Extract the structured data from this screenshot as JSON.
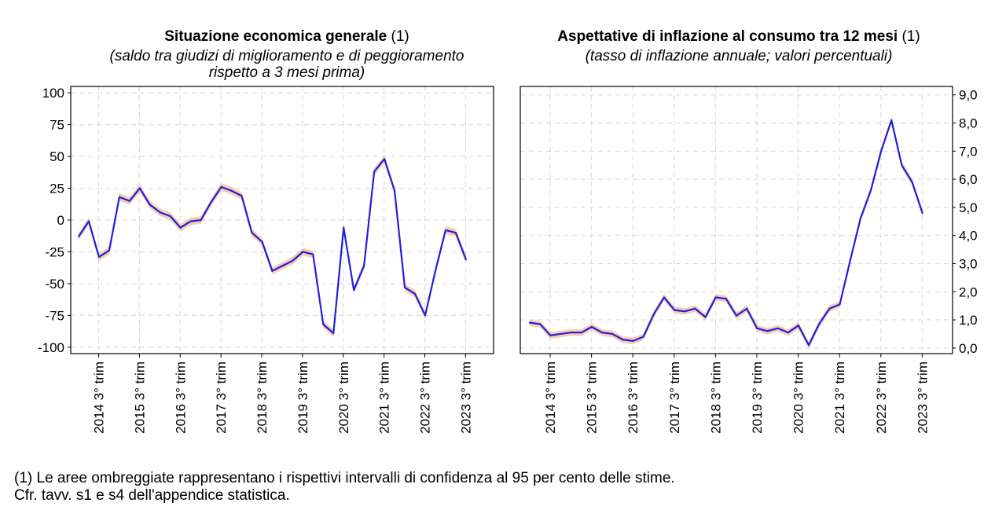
{
  "chart_data": [
    {
      "type": "line",
      "title": "Situazione economica generale",
      "title_note": "(1)",
      "subtitle_line1": "(saldo tra giudizi di miglioramento e di peggioramento",
      "subtitle_line2": "rispetto a 3 mesi prima)",
      "ylim": [
        -105,
        105
      ],
      "y_axis_side": "left",
      "yticks": [
        -100,
        -75,
        -50,
        -25,
        0,
        25,
        50,
        75,
        100
      ],
      "ytick_labels": [
        "-100",
        "-75",
        "-50",
        "-25",
        "0",
        "25",
        "50",
        "75",
        "100"
      ],
      "xticks": [
        "2014 3° trim",
        "2015 3° trim",
        "2016 3° trim",
        "2017 3° trim",
        "2018 3° trim",
        "2019 3° trim",
        "2020 3° trim",
        "2021 3° trim",
        "2022 3° trim",
        "2023 3° trim"
      ],
      "first_period": "2013 4° trim",
      "grid": true,
      "series": [
        {
          "name": "Situazione economica generale",
          "color": "#2020dd",
          "band_color": "#f7c4a4",
          "band_halfwidth": 3,
          "values": [
            -13,
            -1,
            -29,
            -24,
            18,
            15,
            25,
            12,
            6,
            3,
            -6,
            -1,
            0,
            14,
            26,
            23,
            19,
            -10,
            -17,
            -40,
            -36,
            -32,
            -25,
            -27,
            -82,
            -89,
            -6,
            -55,
            -36,
            38,
            48,
            23,
            -53,
            -58,
            -75,
            -40,
            -8,
            -10,
            -31
          ]
        }
      ]
    },
    {
      "type": "line",
      "title": "Aspettative di inflazione al consumo tra 12 mesi",
      "title_note": "(1)",
      "subtitle_line1": "(tasso di inflazione annuale; valori percentuali)",
      "ylim": [
        -0.2,
        9.3
      ],
      "y_axis_side": "right",
      "yticks": [
        0,
        1,
        2,
        3,
        4,
        5,
        6,
        7,
        8,
        9
      ],
      "ytick_labels": [
        "0,0",
        "1,0",
        "2,0",
        "3,0",
        "4,0",
        "5,0",
        "6,0",
        "7,0",
        "8,0",
        "9,0"
      ],
      "xticks": [
        "2014 3° trim",
        "2015 3° trim",
        "2016 3° trim",
        "2017 3° trim",
        "2018 3° trim",
        "2019 3° trim",
        "2020 3° trim",
        "2021 3° trim",
        "2022 3° trim",
        "2023 3° trim"
      ],
      "first_period": "2013 4° trim",
      "grid": true,
      "series": [
        {
          "name": "Aspettative di inflazione",
          "color": "#2020dd",
          "band_color": "#f7c4a4",
          "band_halfwidth": 0.12,
          "values": [
            0.9,
            0.85,
            0.45,
            0.5,
            0.55,
            0.55,
            0.75,
            0.55,
            0.5,
            0.3,
            0.25,
            0.4,
            1.2,
            1.8,
            1.35,
            1.3,
            1.4,
            1.1,
            1.8,
            1.75,
            1.15,
            1.4,
            0.7,
            0.6,
            0.7,
            0.55,
            0.8,
            0.1,
            0.85,
            1.4,
            1.55,
            3.1,
            4.6,
            5.6,
            7.0,
            8.1,
            6.5,
            5.9,
            4.8
          ]
        }
      ]
    }
  ],
  "footnote": {
    "line1": "(1) Le aree ombreggiate rappresentano i rispettivi intervalli di confidenza al 95 per cento delle stime.",
    "line2": "Cfr. tavv. s1 e s4 dell'appendice statistica."
  }
}
